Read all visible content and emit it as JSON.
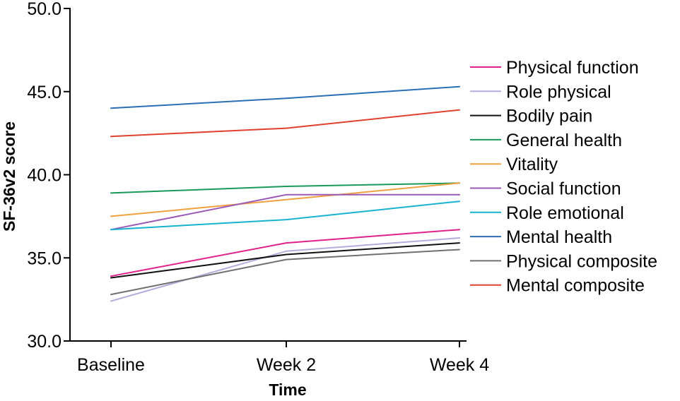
{
  "chart_data": {
    "type": "line",
    "title": "",
    "xlabel": "Time",
    "ylabel": "SF-36v2 score",
    "categories": [
      "Baseline",
      "Week 2",
      "Week 4"
    ],
    "ylim": [
      30.0,
      50.0
    ],
    "yticks": [
      "30.0",
      "35.0",
      "40.0",
      "45.0",
      "50.0"
    ],
    "grid": false,
    "legend_position": "right",
    "series": [
      {
        "name": "Physical function",
        "color": "#e0218a",
        "values": [
          33.9,
          35.9,
          36.7
        ]
      },
      {
        "name": "Role physical",
        "color": "#b3addb",
        "values": [
          32.4,
          35.4,
          36.2
        ]
      },
      {
        "name": "Bodily pain",
        "color": "#111111",
        "values": [
          33.8,
          35.2,
          35.9
        ]
      },
      {
        "name": "General health",
        "color": "#1a9a5a",
        "values": [
          38.9,
          39.3,
          39.5
        ]
      },
      {
        "name": "Vitality",
        "color": "#f0a040",
        "values": [
          37.5,
          38.5,
          39.5
        ]
      },
      {
        "name": "Social function",
        "color": "#9b59b6",
        "values": [
          36.7,
          38.8,
          38.8
        ]
      },
      {
        "name": "Role emotional",
        "color": "#17b2d0",
        "values": [
          36.7,
          37.3,
          38.4
        ]
      },
      {
        "name": "Mental health",
        "color": "#2a6fb5",
        "values": [
          44.0,
          44.6,
          45.3
        ]
      },
      {
        "name": "Physical composite",
        "color": "#707070",
        "values": [
          32.8,
          34.9,
          35.5
        ]
      },
      {
        "name": "Mental composite",
        "color": "#e04030",
        "values": [
          42.3,
          42.8,
          43.9
        ]
      }
    ]
  }
}
